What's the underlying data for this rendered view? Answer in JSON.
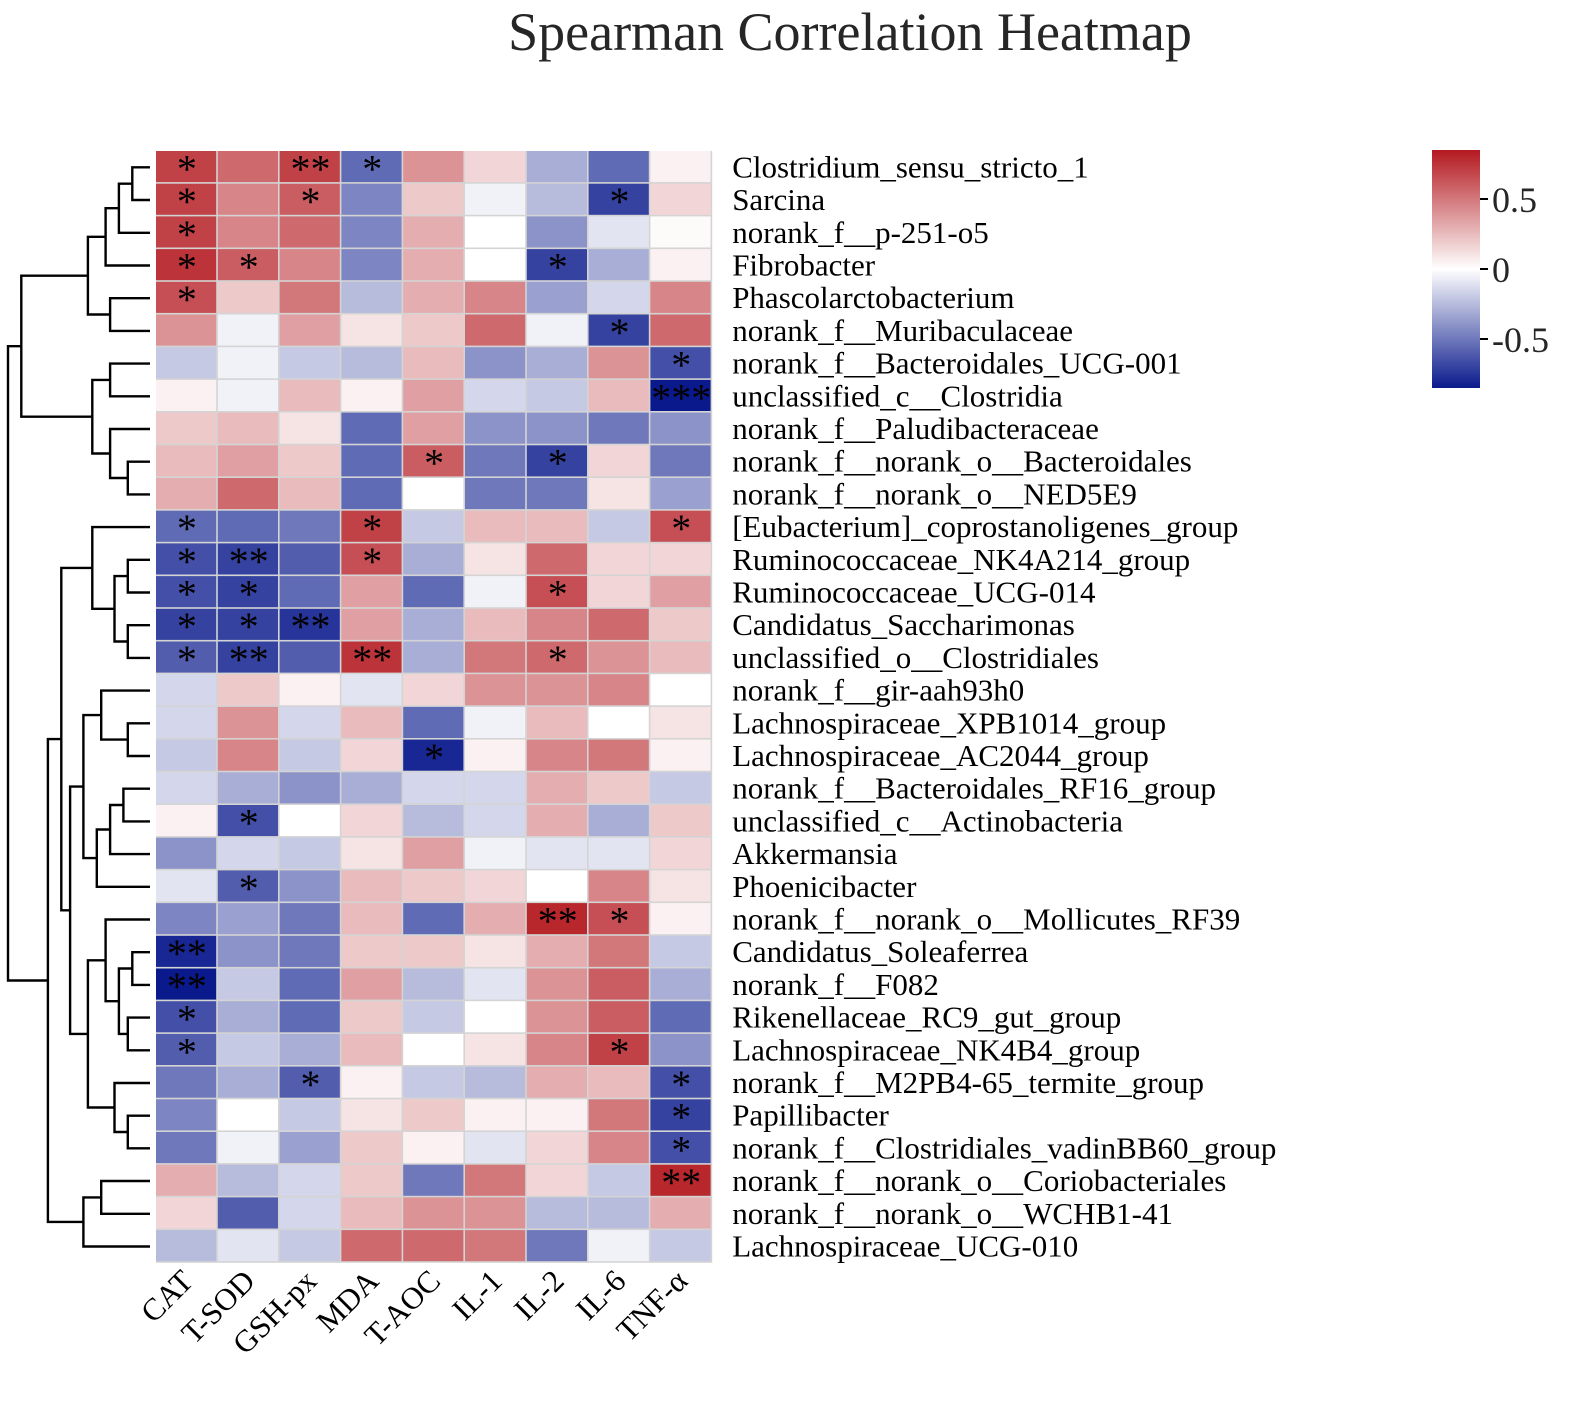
{
  "chart_data": {
    "type": "heatmap",
    "title": "Spearman Correlation Heatmap",
    "columns": [
      "CAT",
      "T-SOD",
      "GSH-px",
      "MDA",
      "T-AOC",
      "IL-1",
      "IL-2",
      "IL-6",
      "TNF-α"
    ],
    "rows": [
      "Clostridium_sensu_stricto_1",
      "Sarcina",
      "norank_f__p-251-o5",
      "Fibrobacter",
      "Phascolarctobacterium",
      "norank_f__Muribaculaceae",
      "norank_f__Bacteroidales_UCG-001",
      "unclassified_c__Clostridia",
      "norank_f__Paludibacteraceae",
      "norank_f__norank_o__Bacteroidales",
      "norank_f__norank_o__NED5E9",
      "[Eubacterium]_coprostanoligenes_group",
      "Ruminococcaceae_NK4A214_group",
      "Ruminococcaceae_UCG-014",
      "Candidatus_Saccharimonas",
      "unclassified_o__Clostridiales",
      "norank_f__gir-aah93h0",
      "Lachnospiraceae_XPB1014_group",
      "Lachnospiraceae_AC2044_group",
      "norank_f__Bacteroidales_RF16_group",
      "unclassified_c__Actinobacteria",
      "Akkermansia",
      "Phoenicibacter",
      "norank_f__norank_o__Mollicutes_RF39",
      "Candidatus_Soleaferrea",
      "norank_f__F082",
      "Rikenellaceae_RC9_gut_group",
      "Lachnospiraceae_NK4B4_group",
      "norank_f__M2PB4-65_termite_group",
      "Papillibacter",
      "norank_f__Clostridiales_vadinBB60_group",
      "norank_f__norank_o__Coriobacteriales",
      "norank_f__norank_o__WCHB1-41",
      "Lachnospiraceae_UCG-010"
    ],
    "values": [
      [
        0.7,
        0.55,
        0.7,
        -0.55,
        0.4,
        0.15,
        -0.3,
        -0.55,
        0.05
      ],
      [
        0.7,
        0.45,
        0.6,
        -0.45,
        0.2,
        -0.05,
        -0.25,
        -0.7,
        0.15
      ],
      [
        0.7,
        0.45,
        0.55,
        -0.45,
        0.3,
        0.0,
        -0.4,
        -0.1,
        0.02
      ],
      [
        0.75,
        0.6,
        0.45,
        -0.45,
        0.3,
        0.0,
        -0.7,
        -0.3,
        0.05
      ],
      [
        0.65,
        0.2,
        0.5,
        -0.25,
        0.3,
        0.45,
        -0.35,
        -0.15,
        0.45
      ],
      [
        0.4,
        -0.05,
        0.35,
        0.1,
        0.2,
        0.55,
        -0.05,
        -0.7,
        0.55
      ],
      [
        -0.2,
        -0.05,
        -0.2,
        -0.25,
        0.25,
        -0.4,
        -0.3,
        0.4,
        -0.65
      ],
      [
        0.05,
        -0.05,
        0.25,
        0.05,
        0.35,
        -0.15,
        -0.2,
        0.25,
        -0.85
      ],
      [
        0.2,
        0.25,
        0.1,
        -0.55,
        0.35,
        -0.4,
        -0.4,
        -0.5,
        -0.4
      ],
      [
        0.25,
        0.35,
        0.2,
        -0.55,
        0.6,
        -0.5,
        -0.7,
        0.15,
        -0.5
      ],
      [
        0.3,
        0.55,
        0.25,
        -0.55,
        0.0,
        -0.5,
        -0.5,
        0.1,
        -0.35
      ],
      [
        -0.55,
        -0.55,
        -0.5,
        0.7,
        -0.2,
        0.25,
        0.25,
        -0.2,
        0.65
      ],
      [
        -0.65,
        -0.7,
        -0.6,
        0.65,
        -0.3,
        0.1,
        0.55,
        0.15,
        0.15
      ],
      [
        -0.65,
        -0.7,
        -0.55,
        0.35,
        -0.55,
        -0.05,
        0.65,
        0.15,
        0.35
      ],
      [
        -0.7,
        -0.7,
        -0.75,
        0.35,
        -0.3,
        0.25,
        0.45,
        0.55,
        0.2
      ],
      [
        -0.6,
        -0.7,
        -0.6,
        0.75,
        -0.3,
        0.5,
        0.55,
        0.4,
        0.25
      ],
      [
        -0.15,
        0.2,
        0.05,
        -0.1,
        0.15,
        0.4,
        0.4,
        0.45,
        0.0
      ],
      [
        -0.15,
        0.4,
        -0.15,
        0.25,
        -0.55,
        -0.05,
        0.25,
        0.0,
        0.1
      ],
      [
        -0.2,
        0.45,
        -0.2,
        0.15,
        -0.8,
        0.05,
        0.45,
        0.5,
        0.05
      ],
      [
        -0.15,
        -0.3,
        -0.4,
        -0.3,
        -0.15,
        -0.15,
        0.3,
        0.2,
        -0.2
      ],
      [
        0.05,
        -0.65,
        0.0,
        0.15,
        -0.25,
        -0.15,
        0.3,
        -0.3,
        0.2
      ],
      [
        -0.4,
        -0.15,
        -0.2,
        0.1,
        0.35,
        -0.05,
        -0.1,
        -0.1,
        0.15
      ],
      [
        -0.1,
        -0.6,
        -0.4,
        0.25,
        0.2,
        0.15,
        0.0,
        0.45,
        0.1
      ],
      [
        -0.45,
        -0.35,
        -0.5,
        0.25,
        -0.55,
        0.3,
        0.8,
        0.65,
        0.05
      ],
      [
        -0.8,
        -0.4,
        -0.5,
        0.2,
        0.2,
        0.1,
        0.3,
        0.5,
        -0.2
      ],
      [
        -0.85,
        -0.2,
        -0.55,
        0.35,
        -0.25,
        -0.1,
        0.4,
        0.6,
        -0.3
      ],
      [
        -0.65,
        -0.3,
        -0.55,
        0.2,
        -0.2,
        0.0,
        0.4,
        0.6,
        -0.55
      ],
      [
        -0.6,
        -0.2,
        -0.3,
        0.25,
        0.0,
        0.1,
        0.45,
        0.7,
        -0.4
      ],
      [
        -0.5,
        -0.3,
        -0.6,
        0.05,
        -0.2,
        -0.25,
        0.3,
        0.25,
        -0.65
      ],
      [
        -0.45,
        0.0,
        -0.2,
        0.1,
        0.2,
        0.05,
        0.05,
        0.5,
        -0.7
      ],
      [
        -0.5,
        -0.05,
        -0.35,
        0.2,
        0.05,
        -0.1,
        0.15,
        0.45,
        -0.65
      ],
      [
        0.3,
        -0.25,
        -0.15,
        0.2,
        -0.5,
        0.5,
        0.15,
        -0.2,
        0.8
      ],
      [
        0.15,
        -0.6,
        -0.15,
        0.25,
        0.4,
        0.4,
        -0.25,
        -0.25,
        0.3
      ],
      [
        -0.25,
        -0.1,
        -0.2,
        0.55,
        0.55,
        0.5,
        -0.5,
        -0.05,
        -0.2
      ]
    ],
    "significance": [
      [
        "*",
        "",
        "**",
        "*",
        "",
        "",
        "",
        "",
        ""
      ],
      [
        "*",
        "",
        "*",
        "",
        "",
        "",
        "",
        "*",
        ""
      ],
      [
        "*",
        "",
        "",
        "",
        "",
        "",
        "",
        "",
        ""
      ],
      [
        "*",
        "*",
        "",
        "",
        "",
        "",
        "*",
        "",
        ""
      ],
      [
        "*",
        "",
        "",
        "",
        "",
        "",
        "",
        "",
        ""
      ],
      [
        "",
        "",
        "",
        "",
        "",
        "",
        "",
        "*",
        ""
      ],
      [
        "",
        "",
        "",
        "",
        "",
        "",
        "",
        "",
        "*"
      ],
      [
        "",
        "",
        "",
        "",
        "",
        "",
        "",
        "",
        "***"
      ],
      [
        "",
        "",
        "",
        "",
        "",
        "",
        "",
        "",
        ""
      ],
      [
        "",
        "",
        "",
        "",
        "*",
        "",
        "*",
        "",
        ""
      ],
      [
        "",
        "",
        "",
        "",
        "",
        "",
        "",
        "",
        ""
      ],
      [
        "*",
        "",
        "",
        "*",
        "",
        "",
        "",
        "",
        "*"
      ],
      [
        "*",
        "**",
        "",
        "*",
        "",
        "",
        "",
        "",
        ""
      ],
      [
        "*",
        "*",
        "",
        "",
        "",
        "",
        "*",
        "",
        ""
      ],
      [
        "*",
        "*",
        "**",
        "",
        "",
        "",
        "",
        "",
        ""
      ],
      [
        "*",
        "**",
        "",
        "**",
        "",
        "",
        "*",
        "",
        ""
      ],
      [
        "",
        "",
        "",
        "",
        "",
        "",
        "",
        "",
        ""
      ],
      [
        "",
        "",
        "",
        "",
        "",
        "",
        "",
        "",
        ""
      ],
      [
        "",
        "",
        "",
        "",
        "*",
        "",
        "",
        "",
        ""
      ],
      [
        "",
        "",
        "",
        "",
        "",
        "",
        "",
        "",
        ""
      ],
      [
        "",
        "*",
        "",
        "",
        "",
        "",
        "",
        "",
        ""
      ],
      [
        "",
        "",
        "",
        "",
        "",
        "",
        "",
        "",
        ""
      ],
      [
        "",
        "*",
        "",
        "",
        "",
        "",
        "",
        "",
        ""
      ],
      [
        "",
        "",
        "",
        "",
        "",
        "",
        "**",
        "*",
        ""
      ],
      [
        "**",
        "",
        "",
        "",
        "",
        "",
        "",
        "",
        ""
      ],
      [
        "**",
        "",
        "",
        "",
        "",
        "",
        "",
        "",
        ""
      ],
      [
        "*",
        "",
        "",
        "",
        "",
        "",
        "",
        "",
        ""
      ],
      [
        "*",
        "",
        "",
        "",
        "",
        "",
        "",
        "*",
        ""
      ],
      [
        "",
        "",
        "*",
        "",
        "",
        "",
        "",
        "",
        "*"
      ],
      [
        "",
        "",
        "",
        "",
        "",
        "",
        "",
        "",
        "*"
      ],
      [
        "",
        "",
        "",
        "",
        "",
        "",
        "",
        "",
        "*"
      ],
      [
        "",
        "",
        "",
        "",
        "",
        "",
        "",
        "",
        "**"
      ],
      [
        "",
        "",
        "",
        "",
        "",
        "",
        "",
        "",
        ""
      ],
      [
        "",
        "",
        "",
        "",
        "",
        "",
        "",
        "",
        ""
      ]
    ],
    "colorbar": {
      "ticks": [
        {
          "value": 0.5,
          "label": "0.5"
        },
        {
          "value": 0,
          "label": "0"
        },
        {
          "value": -0.5,
          "label": "-0.5"
        }
      ],
      "range": [
        -0.85,
        0.85
      ],
      "low_color": "#0a1a8c",
      "mid_color": "#ffffff",
      "high_color": "#b3191f"
    },
    "dendrogram": [
      {
        "a": 0,
        "b": 1,
        "h": 0.2
      },
      {
        "a": 2,
        "b": "m0",
        "h": 0.35
      },
      {
        "a": 3,
        "b": "m1",
        "h": 0.5
      },
      {
        "a": 4,
        "b": 5,
        "h": 0.45
      },
      {
        "a": "m2",
        "b": "m3",
        "h": 0.7
      },
      {
        "a": 6,
        "b": 7,
        "h": 0.45
      },
      {
        "a": 9,
        "b": 10,
        "h": 0.25
      },
      {
        "a": 8,
        "b": "m6",
        "h": 0.45
      },
      {
        "a": "m5",
        "b": "m7",
        "h": 0.65
      },
      {
        "a": "m4",
        "b": "m8",
        "h": 1.45
      },
      {
        "a": 12,
        "b": 13,
        "h": 0.25
      },
      {
        "a": 14,
        "b": 15,
        "h": 0.25
      },
      {
        "a": "m10",
        "b": "m11",
        "h": 0.4
      },
      {
        "a": 11,
        "b": "m12",
        "h": 0.65
      },
      {
        "a": 17,
        "b": 18,
        "h": 0.25
      },
      {
        "a": 16,
        "b": "m14",
        "h": 0.55
      },
      {
        "a": 19,
        "b": 20,
        "h": 0.3
      },
      {
        "a": "m16",
        "b": 21,
        "h": 0.45
      },
      {
        "a": "m17",
        "b": 22,
        "h": 0.6
      },
      {
        "a": "m15",
        "b": "m18",
        "h": 0.75
      },
      {
        "a": 24,
        "b": 25,
        "h": 0.2
      },
      {
        "a": 26,
        "b": 27,
        "h": 0.25
      },
      {
        "a": "m20",
        "b": "m21",
        "h": 0.35
      },
      {
        "a": 23,
        "b": "m22",
        "h": 0.5
      },
      {
        "a": 29,
        "b": 30,
        "h": 0.25
      },
      {
        "a": 28,
        "b": "m24",
        "h": 0.4
      },
      {
        "a": "m23",
        "b": "m25",
        "h": 0.7
      },
      {
        "a": "m19",
        "b": "m26",
        "h": 0.9
      },
      {
        "a": "m13",
        "b": "m27",
        "h": 1.0
      },
      {
        "a": 31,
        "b": 32,
        "h": 0.55
      },
      {
        "a": "m29",
        "b": 33,
        "h": 0.75
      },
      {
        "a": "m28",
        "b": "m30",
        "h": 1.15
      },
      {
        "a": "m9",
        "b": "m31",
        "h": 1.6
      }
    ]
  }
}
